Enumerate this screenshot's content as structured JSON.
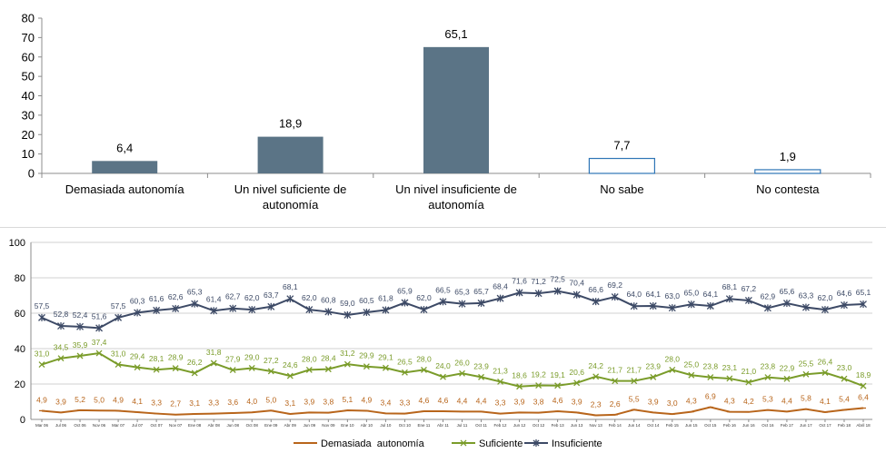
{
  "chart_data": [
    {
      "type": "bar",
      "categories": [
        "Demasiada autonomía",
        "Un nivel suficiente de autonomía",
        "Un nivel insuficiente de autonomía",
        "No sabe",
        "No contesta"
      ],
      "category_lines": [
        [
          "Demasiada autonomía"
        ],
        [
          "Un nivel suficiente de",
          "autonomía"
        ],
        [
          "Un nivel insuficiente de",
          "autonomía"
        ],
        [
          "No sabe"
        ],
        [
          "No contesta"
        ]
      ],
      "values": [
        6.4,
        18.9,
        65.1,
        7.7,
        1.9
      ],
      "value_labels": [
        "6,4",
        "18,9",
        "65,1",
        "7,7",
        "1,9"
      ],
      "ylim": [
        0,
        80
      ],
      "yticks": [
        "0",
        "10",
        "20",
        "30",
        "40",
        "50",
        "60",
        "70",
        "80"
      ],
      "grid": false,
      "colors": {
        "filled": "#5b7486",
        "outline": "#2e75b6",
        "axis": "#8c8c8c"
      }
    },
    {
      "type": "line",
      "x": [
        "Mar 06",
        "Jul 06",
        "Oct 06",
        "Nov 06",
        "Mar 07",
        "Jul 07",
        "Oct 07",
        "Nov 07",
        "Ene 08",
        "Abr 08",
        "Jun 08",
        "Oct 08",
        "Ene 09",
        "Abr 09",
        "Jun 09",
        "Nov 09",
        "Ene 10",
        "Abr 10",
        "Jul 10",
        "Oct 10",
        "Ene 11",
        "Abr 11",
        "Jul 11",
        "Oct 11",
        "Feb 12",
        "Jun 12",
        "Oct 12",
        "Feb 13",
        "Jun 13",
        "Nov 13",
        "Feb 14",
        "Jun 14",
        "Oct 14",
        "Feb 15",
        "Jun 15",
        "Oct 15",
        "Feb 16",
        "Jun 16",
        "Oct 16",
        "Feb 17",
        "Jun 17",
        "Oct 17",
        "Feb 18",
        "Abril 18"
      ],
      "series": [
        {
          "name": "Demasiada  autonomía",
          "color": "#b8651b",
          "values": [
            4.9,
            3.9,
            5.2,
            5.0,
            4.9,
            4.1,
            3.3,
            2.7,
            3.1,
            3.3,
            3.6,
            4.0,
            5.0,
            3.1,
            3.9,
            3.8,
            5.1,
            4.9,
            3.4,
            3.3,
            4.6,
            4.6,
            4.4,
            4.4,
            3.3,
            3.9,
            3.8,
            4.6,
            3.9,
            2.3,
            2.6,
            5.5,
            3.9,
            3.0,
            4.3,
            6.9,
            4.3,
            4.2,
            5.3,
            4.4,
            5.8,
            4.1,
            5.4,
            6.4
          ],
          "labels": [
            "4,9",
            "3,9",
            "5,2",
            "5,0",
            "4,9",
            "4,1",
            "3,3",
            "2,7",
            "3,1",
            "3,3",
            "3,6",
            "4,0",
            "5,0",
            "3,1",
            "3,9",
            "3,8",
            "5,1",
            "4,9",
            "3,4",
            "3,3",
            "4,6",
            "4,6",
            "4,4",
            "4,4",
            "3,3",
            "3,9",
            "3,8",
            "4,6",
            "3,9",
            "2,3",
            "2,6",
            "5,5",
            "3,9",
            "3,0",
            "4,3",
            "6,9",
            "4,3",
            "4,2",
            "5,3",
            "4,4",
            "5,8",
            "4,1",
            "5,4",
            "6,4"
          ]
        },
        {
          "name": "Suficiente",
          "color": "#7a9c2a",
          "values": [
            31.0,
            34.5,
            35.9,
            37.4,
            31.0,
            29.4,
            28.1,
            28.9,
            26.2,
            31.8,
            27.9,
            29.0,
            27.2,
            24.6,
            28.0,
            28.4,
            31.2,
            29.9,
            29.1,
            26.5,
            28.0,
            24.0,
            26.0,
            23.9,
            21.3,
            18.6,
            19.2,
            19.1,
            20.6,
            24.2,
            21.7,
            21.7,
            23.9,
            28.0,
            25.0,
            23.8,
            23.1,
            21.0,
            23.8,
            22.9,
            25.5,
            26.4,
            23.0,
            18.9
          ],
          "labels": [
            "31,0",
            "34,5",
            "35,9",
            "37,4",
            "31,0",
            "29,4",
            "28,1",
            "28,9",
            "26,2",
            "31,8",
            "27,9",
            "29,0",
            "27,2",
            "24,6",
            "28,0",
            "28,4",
            "31,2",
            "29,9",
            "29,1",
            "26,5",
            "28,0",
            "24,0",
            "26,0",
            "23,9",
            "21,3",
            "18,6",
            "19,2",
            "19,1",
            "20,6",
            "24,2",
            "21,7",
            "21,7",
            "23,9",
            "28,0",
            "25,0",
            "23,8",
            "23,1",
            "21,0",
            "23,8",
            "22,9",
            "25,5",
            "26,4",
            "23,0",
            "18,9"
          ]
        },
        {
          "name": "Insuficiente",
          "color": "#3d4a66",
          "values": [
            57.5,
            52.8,
            52.4,
            51.6,
            57.5,
            60.3,
            61.6,
            62.6,
            65.3,
            61.4,
            62.7,
            62.0,
            63.7,
            68.1,
            62.0,
            60.8,
            59.0,
            60.5,
            61.8,
            65.9,
            62.0,
            66.5,
            65.3,
            65.7,
            68.4,
            71.6,
            71.2,
            72.5,
            70.4,
            66.6,
            69.2,
            64.0,
            64.1,
            63.0,
            65.0,
            64.1,
            68.1,
            67.2,
            62.9,
            65.6,
            63.3,
            62.0,
            64.6,
            65.1
          ],
          "labels": [
            "57,5",
            "52,8",
            "52,4",
            "51,6",
            "57,5",
            "60,3",
            "61,6",
            "62,6",
            "65,3",
            "61,4",
            "62,7",
            "62,0",
            "63,7",
            "68,1",
            "62,0",
            "60,8",
            "59,0",
            "60,5",
            "61,8",
            "65,9",
            "62,0",
            "66,5",
            "65,3",
            "65,7",
            "68,4",
            "71,6",
            "71,2",
            "72,5",
            "70,4",
            "66,6",
            "69,2",
            "64,0",
            "64,1",
            "63,0",
            "65,0",
            "64,1",
            "68,1",
            "67,2",
            "62,9",
            "65,6",
            "63,3",
            "62,0",
            "64,6",
            "65,1"
          ]
        }
      ],
      "ylim": [
        0,
        100
      ],
      "yticks": [
        "0",
        "20",
        "40",
        "60",
        "80",
        "100"
      ],
      "grid": true,
      "legend": "bottom"
    }
  ]
}
